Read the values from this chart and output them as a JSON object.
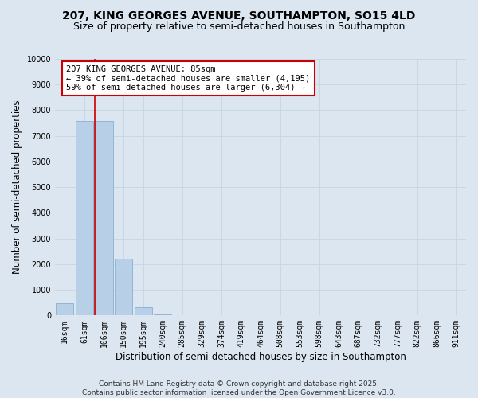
{
  "title_line1": "207, KING GEORGES AVENUE, SOUTHAMPTON, SO15 4LD",
  "title_line2": "Size of property relative to semi-detached houses in Southampton",
  "xlabel": "Distribution of semi-detached houses by size in Southampton",
  "ylabel": "Number of semi-detached properties",
  "categories": [
    "16sqm",
    "61sqm",
    "106sqm",
    "150sqm",
    "195sqm",
    "240sqm",
    "285sqm",
    "329sqm",
    "374sqm",
    "419sqm",
    "464sqm",
    "508sqm",
    "553sqm",
    "598sqm",
    "643sqm",
    "687sqm",
    "732sqm",
    "777sqm",
    "822sqm",
    "866sqm",
    "911sqm"
  ],
  "values": [
    490,
    7580,
    7580,
    2200,
    330,
    55,
    5,
    0,
    0,
    0,
    0,
    0,
    0,
    0,
    0,
    0,
    0,
    0,
    0,
    0,
    0
  ],
  "bar_color": "#b8cfe8",
  "bar_edge_color": "#8ab0d0",
  "property_sqm": 85,
  "pct_smaller": 39,
  "pct_larger": 59,
  "n_smaller": 4195,
  "n_larger": 6304,
  "annotation_text_line1": "207 KING GEORGES AVENUE: 85sqm",
  "annotation_text_line2": "← 39% of semi-detached houses are smaller (4,195)",
  "annotation_text_line3": "59% of semi-detached houses are larger (6,304) →",
  "ylim": [
    0,
    10000
  ],
  "yticks": [
    0,
    1000,
    2000,
    3000,
    4000,
    5000,
    6000,
    7000,
    8000,
    9000,
    10000
  ],
  "grid_color": "#c8d4e4",
  "background_color": "#dce6f0",
  "annotation_box_color": "#ffffff",
  "annotation_box_edge": "#cc0000",
  "red_line_color": "#cc0000",
  "footer_line1": "Contains HM Land Registry data © Crown copyright and database right 2025.",
  "footer_line2": "Contains public sector information licensed under the Open Government Licence v3.0.",
  "title_fontsize": 10,
  "subtitle_fontsize": 9,
  "axis_label_fontsize": 8.5,
  "tick_fontsize": 7,
  "annotation_fontsize": 7.5,
  "footer_fontsize": 6.5
}
